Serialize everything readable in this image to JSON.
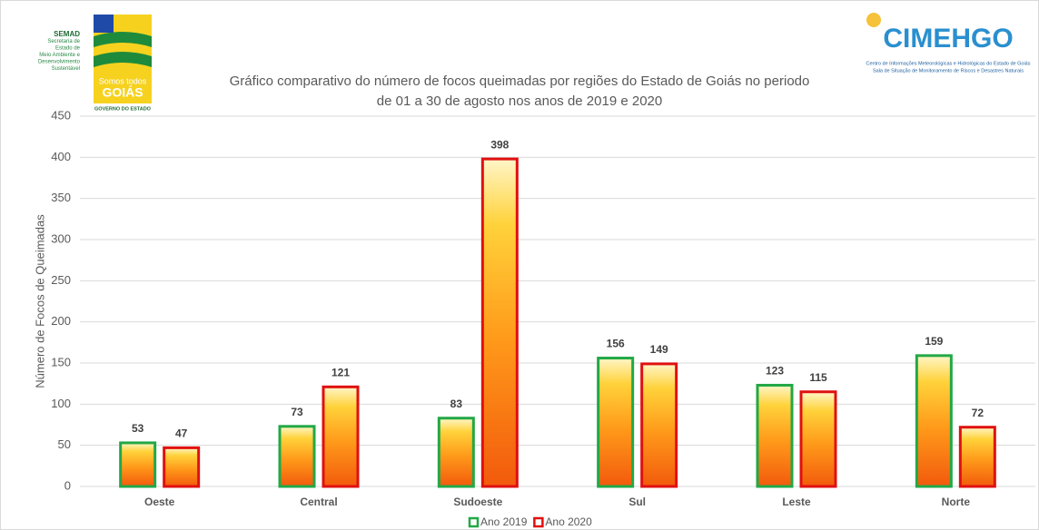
{
  "header": {
    "left_logo": [
      "SEMAD",
      "Secretaria de",
      "Estado de",
      "Meio Ambiente e",
      "Desenvolvimento",
      "Sustentável"
    ],
    "left_badge": [
      "Somos todos",
      "GOIÁS",
      "GOVERNO DO ESTADO"
    ],
    "right_logo": [
      "CIMEHGO",
      "Centro de Informações Meteorológicas e Hidrológicas do Estado de Goiás",
      "Sala de Situação de Monitoramento de Riscos e Desastres Naturais"
    ]
  },
  "chart_data": {
    "type": "bar",
    "title": [
      "Gráfico comparativo do número de focos queimadas por regiões do Estado de Goiás no periodo",
      "de 01 a 30 de agosto nos anos de 2019 e 2020"
    ],
    "y_label": "Número de Focos de Queimadas",
    "categories": [
      "Oeste",
      "Central",
      "Sudoeste",
      "Sul",
      "Leste",
      "Norte"
    ],
    "series": [
      {
        "name": "Ano 2019",
        "color": "#22a846",
        "values": [
          53,
          73,
          83,
          156,
          123,
          159
        ]
      },
      {
        "name": "Ano 2020",
        "color": "#e01010",
        "values": [
          47,
          121,
          398,
          149,
          115,
          72
        ]
      }
    ],
    "ylim": [
      0,
      450
    ],
    "yticks": [
      0,
      50,
      100,
      150,
      200,
      250,
      300,
      350,
      400,
      450
    ],
    "grid": true,
    "legend": "bottom"
  }
}
